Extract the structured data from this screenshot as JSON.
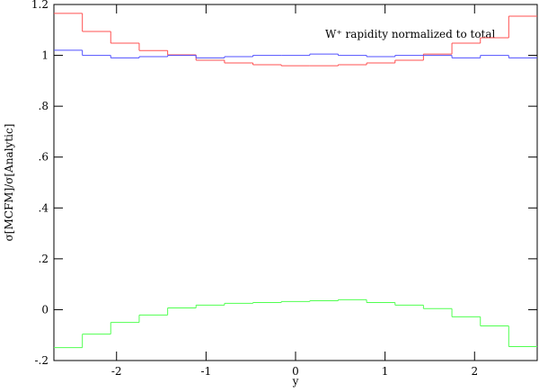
{
  "chart_data": {
    "type": "histogram",
    "annotation": "W⁺ rapidity normalized to total",
    "x_label": "y",
    "y_label": "σ[MCFM]/σ[Analytic]",
    "bins": [
      -2.7,
      -2.382,
      -2.065,
      -1.747,
      -1.429,
      -1.112,
      -0.794,
      -0.476,
      -0.159,
      0.159,
      0.476,
      0.794,
      1.112,
      1.429,
      1.747,
      2.065,
      2.382,
      2.7
    ],
    "series": [
      {
        "color": "#ff5050",
        "values": [
          1.165,
          1.094,
          1.048,
          1.019,
          1.002,
          0.981,
          0.97,
          0.963,
          0.959,
          0.959,
          0.963,
          0.97,
          0.981,
          1.005,
          1.048,
          1.069,
          1.154
        ]
      },
      {
        "color": "#5050ff",
        "values": [
          1.02,
          1.0,
          0.99,
          0.995,
          1.0,
          0.99,
          0.995,
          1.0,
          1.0,
          1.005,
          1.0,
          0.995,
          1.0,
          1.0,
          0.99,
          1.0,
          0.99
        ]
      },
      {
        "color": "#50ff50",
        "values": [
          -0.149,
          -0.096,
          -0.05,
          -0.021,
          0.007,
          0.018,
          0.025,
          0.028,
          0.032,
          0.035,
          0.039,
          0.028,
          0.018,
          0.004,
          -0.028,
          -0.064,
          -0.145
        ]
      }
    ],
    "xlim": [
      -2.7,
      2.7
    ],
    "ylim": [
      -0.2,
      1.2
    ],
    "xticks": [
      -2,
      -1,
      0,
      1,
      2
    ],
    "yticks": [
      {
        "value": -0.2,
        "label": "-.2"
      },
      0,
      {
        "value": 0.2,
        "label": ".2"
      },
      {
        "value": 0.4,
        "label": ".4"
      },
      {
        "value": 0.6,
        "label": ".6"
      },
      {
        "value": 0.8,
        "label": ".8"
      },
      1,
      1.2
    ]
  }
}
